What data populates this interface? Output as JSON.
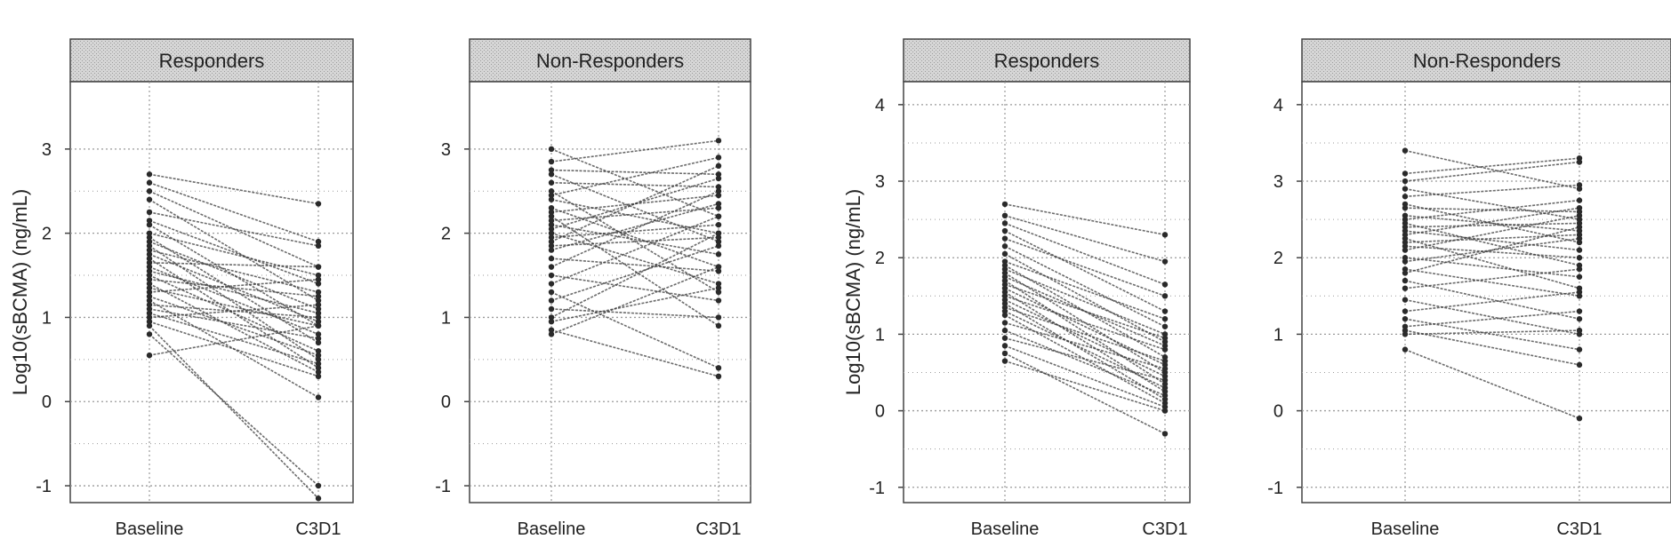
{
  "chart_data": [
    {
      "type": "line",
      "group": "Responders",
      "ylabel": "Log10(sBCMA) (ng/mL)",
      "categories": [
        "Baseline",
        "C3D1"
      ],
      "yticks": [
        -1,
        0,
        1,
        2,
        3
      ],
      "ylim": [
        -1.2,
        3.8
      ],
      "series": [
        {
          "name": "s1",
          "values": [
            2.7,
            2.35
          ]
        },
        {
          "name": "s2",
          "values": [
            2.6,
            1.9
          ]
        },
        {
          "name": "s3",
          "values": [
            2.5,
            1.6
          ]
        },
        {
          "name": "s4",
          "values": [
            2.4,
            1.2
          ]
        },
        {
          "name": "s5",
          "values": [
            2.25,
            1.85
          ]
        },
        {
          "name": "s6",
          "values": [
            2.15,
            1.4
          ]
        },
        {
          "name": "s7",
          "values": [
            2.1,
            0.9
          ]
        },
        {
          "name": "s8",
          "values": [
            2.0,
            1.5
          ]
        },
        {
          "name": "s9",
          "values": [
            1.95,
            0.7
          ]
        },
        {
          "name": "s10",
          "values": [
            1.9,
            1.1
          ]
        },
        {
          "name": "s11",
          "values": [
            1.85,
            0.5
          ]
        },
        {
          "name": "s12",
          "values": [
            1.8,
            1.3
          ]
        },
        {
          "name": "s13",
          "values": [
            1.75,
            0.95
          ]
        },
        {
          "name": "s14",
          "values": [
            1.7,
            0.4
          ]
        },
        {
          "name": "s15",
          "values": [
            1.65,
            1.6
          ]
        },
        {
          "name": "s16",
          "values": [
            1.6,
            0.8
          ]
        },
        {
          "name": "s17",
          "values": [
            1.55,
            1.05
          ]
        },
        {
          "name": "s18",
          "values": [
            1.5,
            0.6
          ]
        },
        {
          "name": "s19",
          "values": [
            1.45,
            1.25
          ]
        },
        {
          "name": "s20",
          "values": [
            1.4,
            0.35
          ]
        },
        {
          "name": "s21",
          "values": [
            1.35,
            0.9
          ]
        },
        {
          "name": "s22",
          "values": [
            1.3,
            1.45
          ]
        },
        {
          "name": "s23",
          "values": [
            1.25,
            0.55
          ]
        },
        {
          "name": "s24",
          "values": [
            1.2,
            0.05
          ]
        },
        {
          "name": "s25",
          "values": [
            1.15,
            1.0
          ]
        },
        {
          "name": "s26",
          "values": [
            1.1,
            0.75
          ]
        },
        {
          "name": "s27",
          "values": [
            1.05,
            0.45
          ]
        },
        {
          "name": "s28",
          "values": [
            1.0,
            1.15
          ]
        },
        {
          "name": "s29",
          "values": [
            0.95,
            0.3
          ]
        },
        {
          "name": "s30",
          "values": [
            0.9,
            -1.15
          ]
        },
        {
          "name": "s31",
          "values": [
            0.8,
            -1.0
          ]
        },
        {
          "name": "s32",
          "values": [
            0.55,
            0.9
          ]
        }
      ]
    },
    {
      "type": "line",
      "group": "Non-Responders",
      "ylabel": "",
      "categories": [
        "Baseline",
        "C3D1"
      ],
      "yticks": [
        -1,
        0,
        1,
        2,
        3
      ],
      "ylim": [
        -1.2,
        3.8
      ],
      "series": [
        {
          "name": "s1",
          "values": [
            3.0,
            2.2
          ]
        },
        {
          "name": "s2",
          "values": [
            2.85,
            3.1
          ]
        },
        {
          "name": "s3",
          "values": [
            2.75,
            2.7
          ]
        },
        {
          "name": "s4",
          "values": [
            2.7,
            1.9
          ]
        },
        {
          "name": "s5",
          "values": [
            2.6,
            2.55
          ]
        },
        {
          "name": "s6",
          "values": [
            2.5,
            1.3
          ]
        },
        {
          "name": "s7",
          "values": [
            2.45,
            2.9
          ]
        },
        {
          "name": "s8",
          "values": [
            2.4,
            2.0
          ]
        },
        {
          "name": "s9",
          "values": [
            2.3,
            1.6
          ]
        },
        {
          "name": "s10",
          "values": [
            2.25,
            2.45
          ]
        },
        {
          "name": "s11",
          "values": [
            2.2,
            0.9
          ]
        },
        {
          "name": "s12",
          "values": [
            2.15,
            2.3
          ]
        },
        {
          "name": "s13",
          "values": [
            2.1,
            1.75
          ]
        },
        {
          "name": "s14",
          "values": [
            2.05,
            2.65
          ]
        },
        {
          "name": "s15",
          "values": [
            2.0,
            1.4
          ]
        },
        {
          "name": "s16",
          "values": [
            1.95,
            2.1
          ]
        },
        {
          "name": "s17",
          "values": [
            1.9,
            2.8
          ]
        },
        {
          "name": "s18",
          "values": [
            1.85,
            1.95
          ]
        },
        {
          "name": "s19",
          "values": [
            1.8,
            2.35
          ]
        },
        {
          "name": "s20",
          "values": [
            1.7,
            1.55
          ]
        },
        {
          "name": "s21",
          "values": [
            1.6,
            2.5
          ]
        },
        {
          "name": "s22",
          "values": [
            1.5,
            1.2
          ]
        },
        {
          "name": "s23",
          "values": [
            1.4,
            2.2
          ]
        },
        {
          "name": "s24",
          "values": [
            1.3,
            0.4
          ]
        },
        {
          "name": "s25",
          "values": [
            1.2,
            1.85
          ]
        },
        {
          "name": "s26",
          "values": [
            1.1,
            1.0
          ]
        },
        {
          "name": "s27",
          "values": [
            0.85,
            0.3
          ]
        },
        {
          "name": "s28",
          "values": [
            0.8,
            1.6
          ]
        },
        {
          "name": "s29",
          "values": [
            0.95,
            1.35
          ]
        },
        {
          "name": "s30",
          "values": [
            1.0,
            2.0
          ]
        }
      ]
    },
    {
      "type": "line",
      "group": "Responders",
      "ylabel": "Log10(sBCMA) (ng/mL)",
      "categories": [
        "Baseline",
        "C3D1"
      ],
      "yticks": [
        -1,
        0,
        1,
        2,
        3,
        4
      ],
      "ylim": [
        -1.2,
        4.3
      ],
      "series": [
        {
          "name": "s1",
          "values": [
            2.7,
            2.3
          ]
        },
        {
          "name": "s2",
          "values": [
            2.55,
            1.95
          ]
        },
        {
          "name": "s3",
          "values": [
            2.45,
            1.65
          ]
        },
        {
          "name": "s4",
          "values": [
            2.35,
            1.3
          ]
        },
        {
          "name": "s5",
          "values": [
            2.25,
            1.5
          ]
        },
        {
          "name": "s6",
          "values": [
            2.15,
            1.1
          ]
        },
        {
          "name": "s7",
          "values": [
            2.05,
            0.9
          ]
        },
        {
          "name": "s8",
          "values": [
            1.95,
            1.2
          ]
        },
        {
          "name": "s9",
          "values": [
            1.9,
            0.7
          ]
        },
        {
          "name": "s10",
          "values": [
            1.85,
            1.0
          ]
        },
        {
          "name": "s11",
          "values": [
            1.8,
            0.5
          ]
        },
        {
          "name": "s12",
          "values": [
            1.75,
            0.85
          ]
        },
        {
          "name": "s13",
          "values": [
            1.7,
            0.35
          ]
        },
        {
          "name": "s14",
          "values": [
            1.65,
            0.95
          ]
        },
        {
          "name": "s15",
          "values": [
            1.6,
            0.6
          ]
        },
        {
          "name": "s16",
          "values": [
            1.55,
            0.25
          ]
        },
        {
          "name": "s17",
          "values": [
            1.5,
            0.8
          ]
        },
        {
          "name": "s18",
          "values": [
            1.45,
            0.45
          ]
        },
        {
          "name": "s19",
          "values": [
            1.4,
            0.15
          ]
        },
        {
          "name": "s20",
          "values": [
            1.35,
            0.65
          ]
        },
        {
          "name": "s21",
          "values": [
            1.3,
            0.3
          ]
        },
        {
          "name": "s22",
          "values": [
            1.25,
            0.1
          ]
        },
        {
          "name": "s23",
          "values": [
            1.15,
            0.55
          ]
        },
        {
          "name": "s24",
          "values": [
            1.05,
            0.2
          ]
        },
        {
          "name": "s25",
          "values": [
            0.95,
            0.4
          ]
        },
        {
          "name": "s26",
          "values": [
            0.85,
            0.05
          ]
        },
        {
          "name": "s27",
          "values": [
            0.75,
            -0.3
          ]
        },
        {
          "name": "s28",
          "values": [
            0.65,
            0.0
          ]
        }
      ]
    },
    {
      "type": "line",
      "group": "Non-Responders",
      "ylabel": "",
      "categories": [
        "Baseline",
        "C3D1"
      ],
      "yticks": [
        -1,
        0,
        1,
        2,
        3,
        4
      ],
      "ylim": [
        -1.2,
        4.3
      ],
      "series": [
        {
          "name": "s1",
          "values": [
            3.4,
            2.9
          ]
        },
        {
          "name": "s2",
          "values": [
            3.1,
            3.3
          ]
        },
        {
          "name": "s3",
          "values": [
            3.0,
            3.25
          ]
        },
        {
          "name": "s4",
          "values": [
            2.9,
            2.5
          ]
        },
        {
          "name": "s5",
          "values": [
            2.8,
            2.95
          ]
        },
        {
          "name": "s6",
          "values": [
            2.7,
            2.2
          ]
        },
        {
          "name": "s7",
          "values": [
            2.65,
            2.6
          ]
        },
        {
          "name": "s8",
          "values": [
            2.55,
            2.35
          ]
        },
        {
          "name": "s9",
          "values": [
            2.5,
            2.75
          ]
        },
        {
          "name": "s10",
          "values": [
            2.45,
            1.9
          ]
        },
        {
          "name": "s11",
          "values": [
            2.4,
            2.45
          ]
        },
        {
          "name": "s12",
          "values": [
            2.35,
            2.1
          ]
        },
        {
          "name": "s13",
          "values": [
            2.3,
            2.65
          ]
        },
        {
          "name": "s14",
          "values": [
            2.25,
            1.6
          ]
        },
        {
          "name": "s15",
          "values": [
            2.2,
            2.3
          ]
        },
        {
          "name": "s16",
          "values": [
            2.15,
            2.0
          ]
        },
        {
          "name": "s17",
          "values": [
            2.1,
            2.55
          ]
        },
        {
          "name": "s18",
          "values": [
            2.0,
            1.75
          ]
        },
        {
          "name": "s19",
          "values": [
            1.95,
            2.25
          ]
        },
        {
          "name": "s20",
          "values": [
            1.85,
            1.5
          ]
        },
        {
          "name": "s21",
          "values": [
            1.8,
            2.4
          ]
        },
        {
          "name": "s22",
          "values": [
            1.7,
            1.2
          ]
        },
        {
          "name": "s23",
          "values": [
            1.6,
            1.85
          ]
        },
        {
          "name": "s24",
          "values": [
            1.45,
            1.0
          ]
        },
        {
          "name": "s25",
          "values": [
            1.3,
            1.55
          ]
        },
        {
          "name": "s26",
          "values": [
            1.2,
            0.8
          ]
        },
        {
          "name": "s27",
          "values": [
            1.1,
            1.3
          ]
        },
        {
          "name": "s28",
          "values": [
            1.05,
            0.6
          ]
        },
        {
          "name": "s29",
          "values": [
            1.0,
            1.05
          ]
        },
        {
          "name": "s30",
          "values": [
            0.8,
            -0.1
          ]
        }
      ]
    }
  ],
  "colors": {
    "line": "#3a3a3a",
    "marker": "#2a2a2a",
    "strip_fill": "#cfcfcf",
    "grid": "#9a9a9a",
    "frame": "#444444"
  }
}
